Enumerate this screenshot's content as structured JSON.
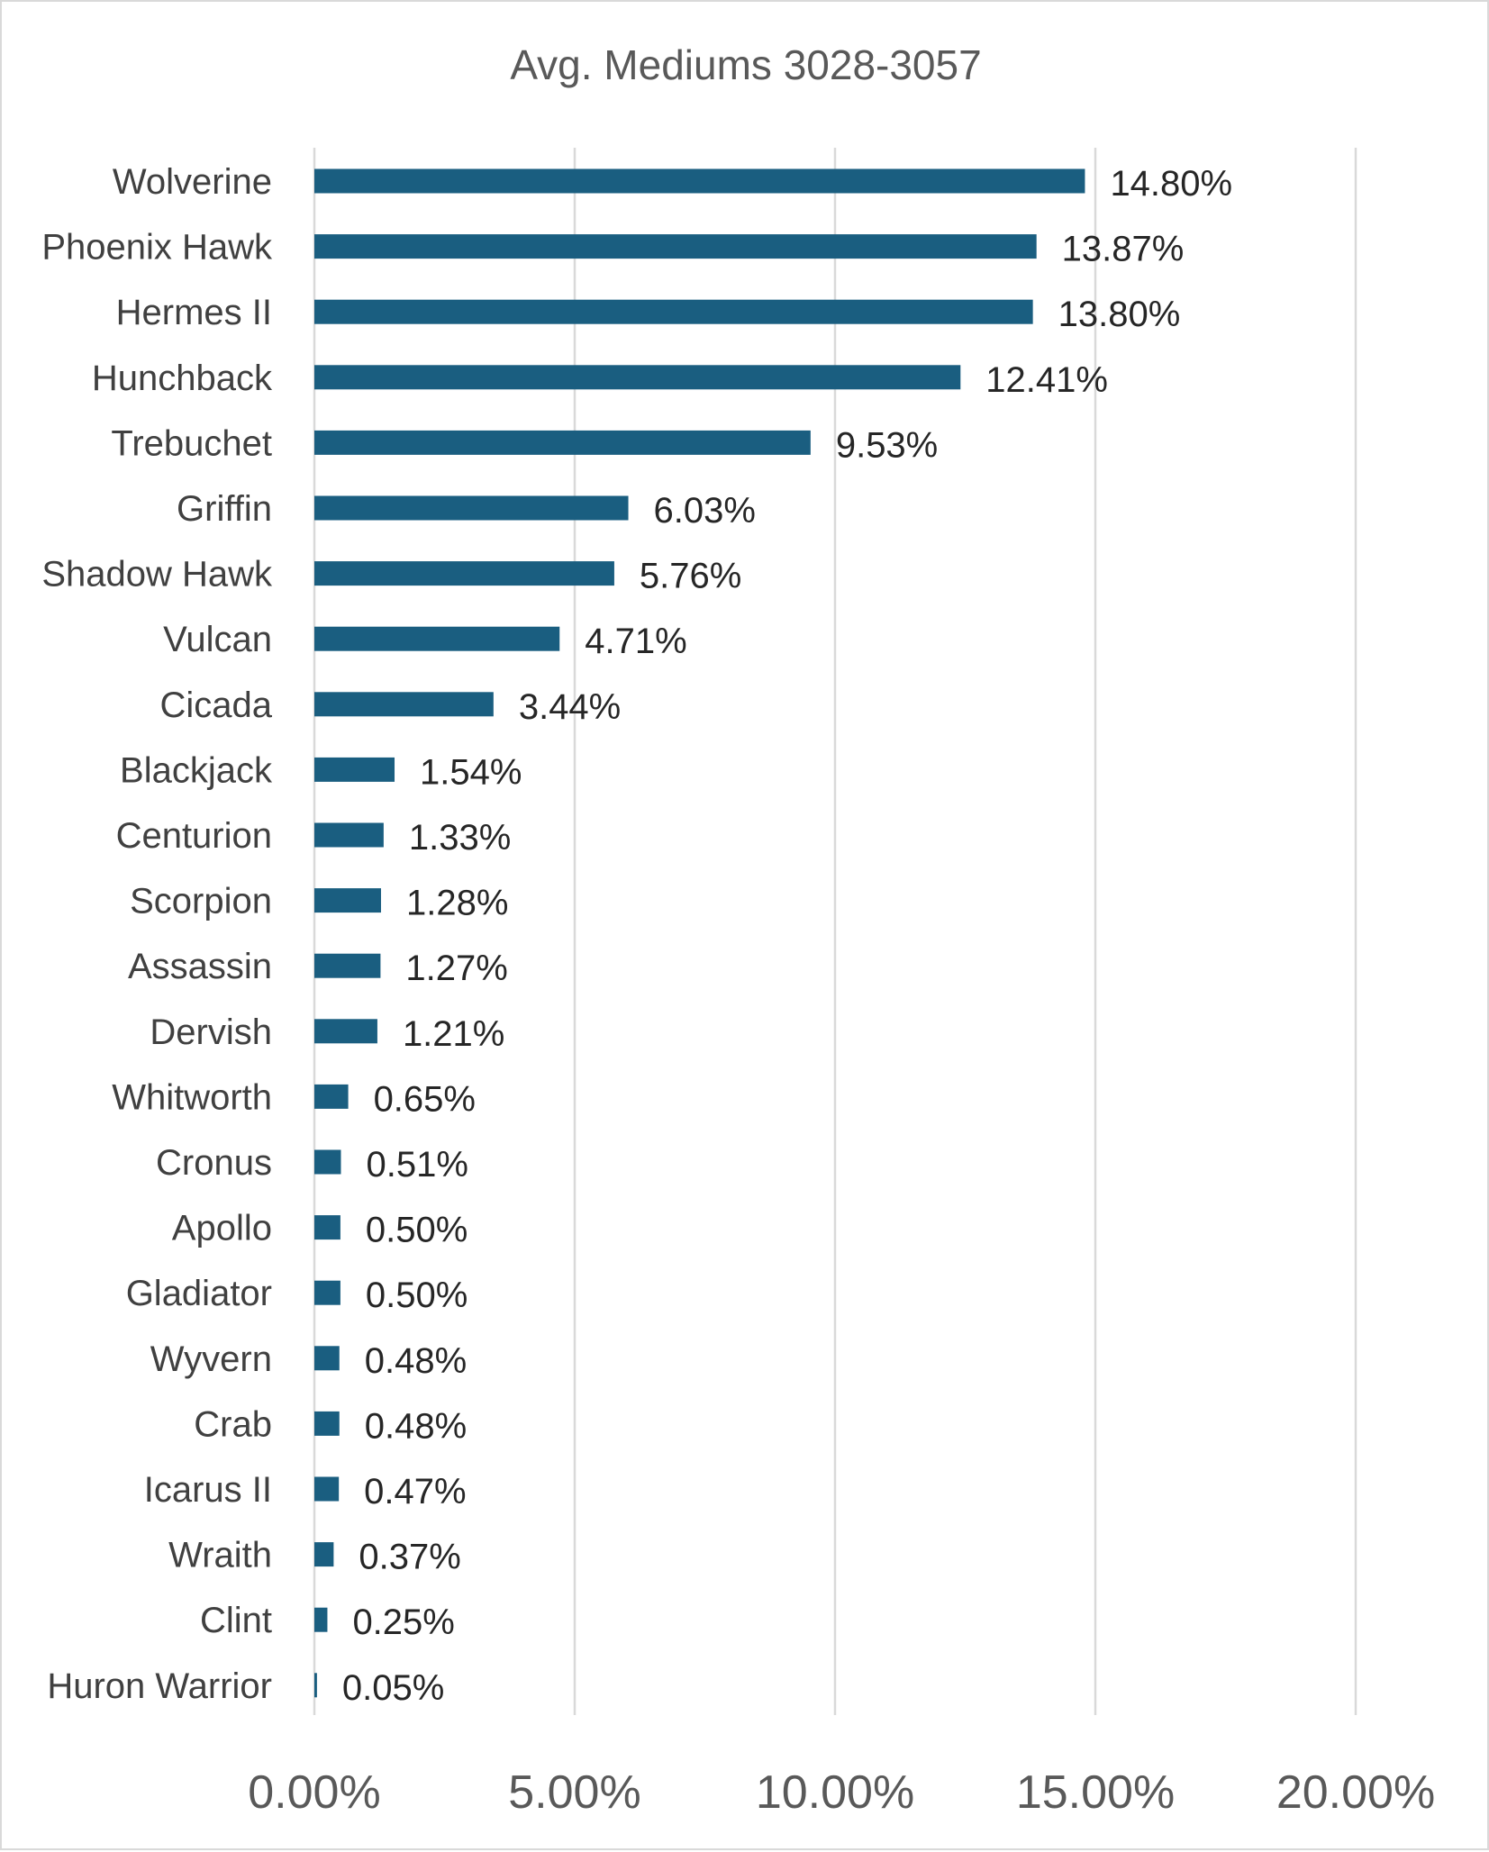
{
  "chart_data": {
    "type": "bar",
    "orientation": "horizontal",
    "title": "Avg. Mediums 3028-3057",
    "xlabel": "",
    "ylabel": "",
    "xlim": [
      0,
      20
    ],
    "x_ticks": [
      0,
      5,
      10,
      15,
      20
    ],
    "x_tick_labels": [
      "0.00%",
      "5.00%",
      "10.00%",
      "15.00%",
      "20.00%"
    ],
    "grid": "vertical",
    "legend": "none",
    "bar_color": "#1a5e80",
    "categories": [
      "Wolverine",
      "Phoenix Hawk",
      "Hermes II",
      "Hunchback",
      "Trebuchet",
      "Griffin",
      "Shadow Hawk",
      "Vulcan",
      "Cicada",
      "Blackjack",
      "Centurion",
      "Scorpion",
      "Assassin",
      "Dervish",
      "Whitworth",
      "Cronus",
      "Apollo",
      "Gladiator",
      "Wyvern",
      "Crab",
      "Icarus II",
      "Wraith",
      "Clint",
      "Huron Warrior"
    ],
    "values": [
      14.8,
      13.87,
      13.8,
      12.41,
      9.53,
      6.03,
      5.76,
      4.71,
      3.44,
      1.54,
      1.33,
      1.28,
      1.27,
      1.21,
      0.65,
      0.51,
      0.5,
      0.5,
      0.48,
      0.48,
      0.47,
      0.37,
      0.25,
      0.05
    ],
    "data_labels": [
      "14.80%",
      "13.87%",
      "13.80%",
      "12.41%",
      "9.53%",
      "6.03%",
      "5.76%",
      "4.71%",
      "3.44%",
      "1.54%",
      "1.33%",
      "1.28%",
      "1.27%",
      "1.21%",
      "0.65%",
      "0.51%",
      "0.50%",
      "0.50%",
      "0.48%",
      "0.48%",
      "0.47%",
      "0.37%",
      "0.25%",
      "0.05%"
    ]
  }
}
